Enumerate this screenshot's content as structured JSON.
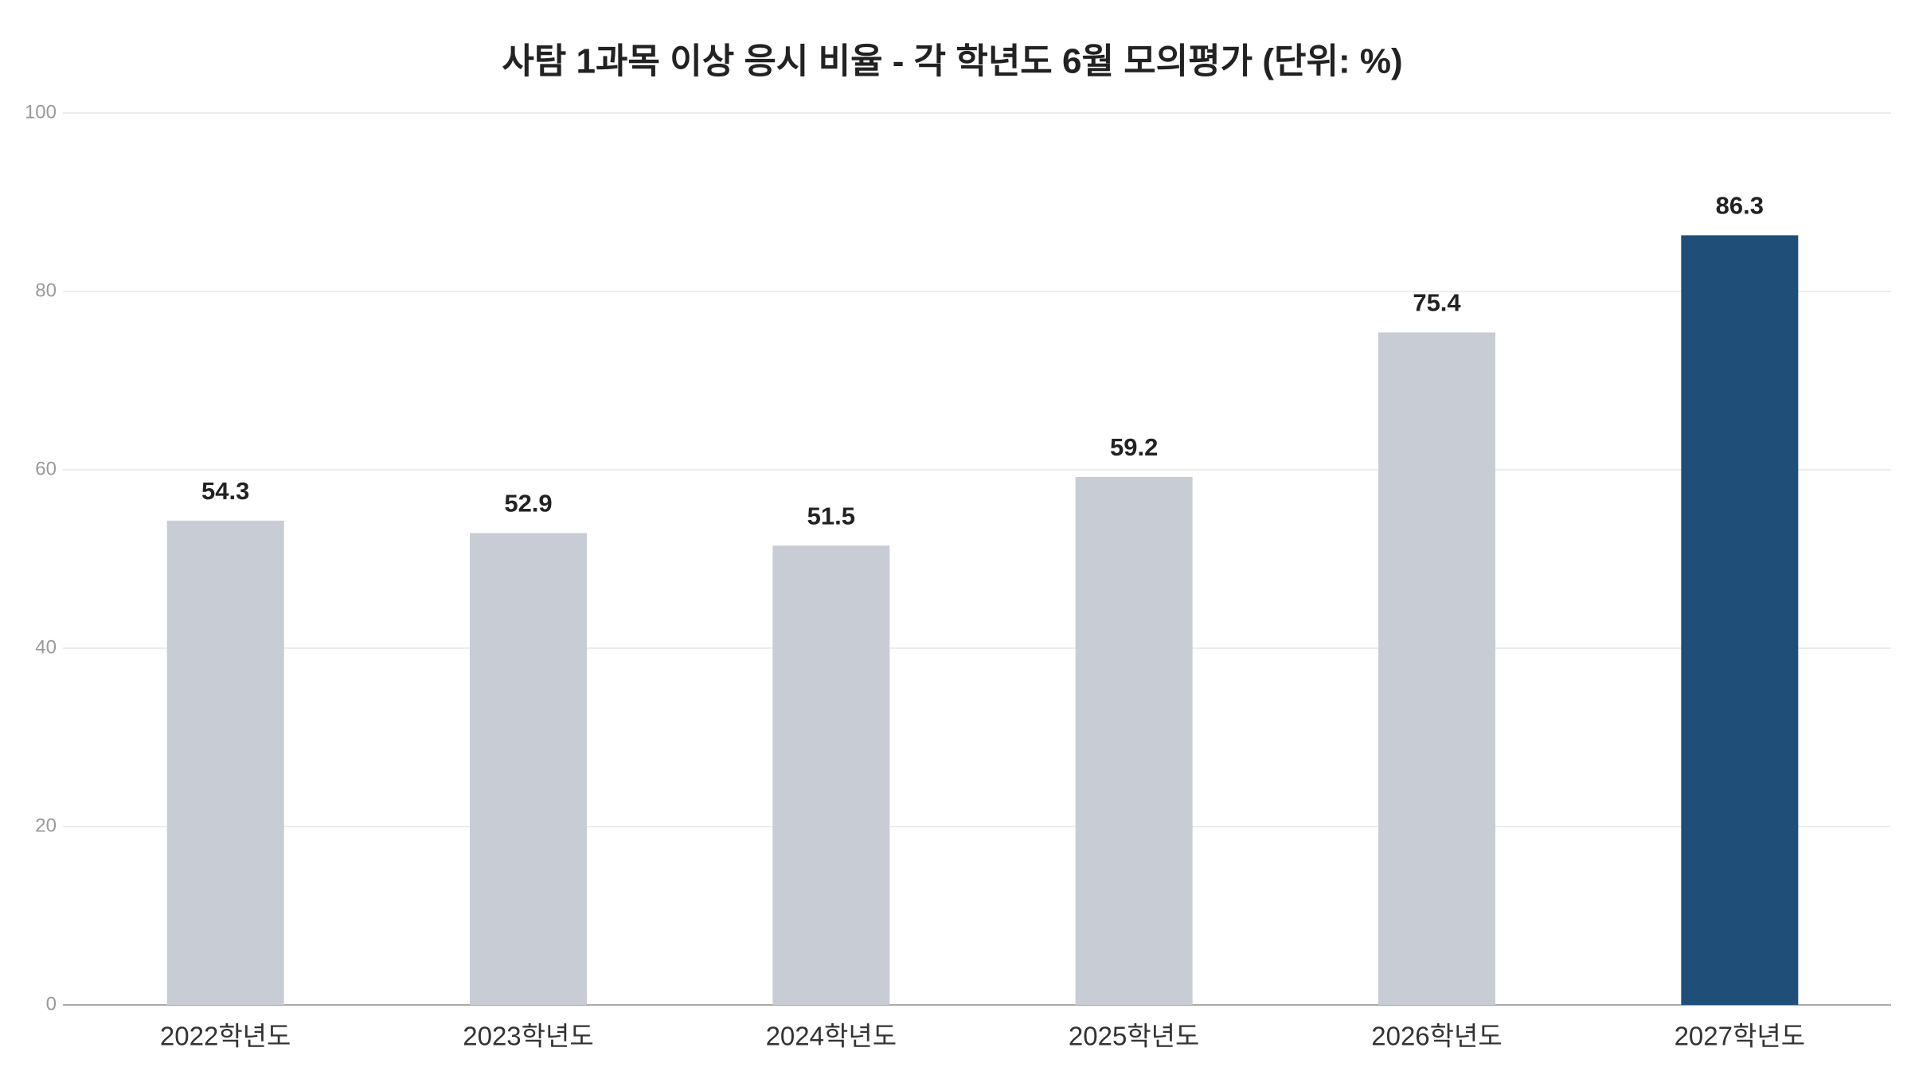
{
  "chart_data": {
    "type": "bar",
    "title": "사탐 1과목 이상 응시 비율 - 각 학년도 6월 모의평가 (단위: %)",
    "categories": [
      "2022학년도",
      "2023학년도",
      "2024학년도",
      "2025학년도",
      "2026학년도",
      "2027학년도"
    ],
    "values": [
      54.3,
      52.9,
      51.5,
      59.2,
      75.4,
      86.3
    ],
    "colors": [
      "#c8ccd4",
      "#c8ccd4",
      "#c8ccd4",
      "#c8ccd4",
      "#c8ccd4",
      "#1f4e79"
    ],
    "ylim": [
      0,
      100
    ],
    "yticks": [
      0,
      20,
      40,
      60,
      80,
      100
    ],
    "grid": true
  }
}
